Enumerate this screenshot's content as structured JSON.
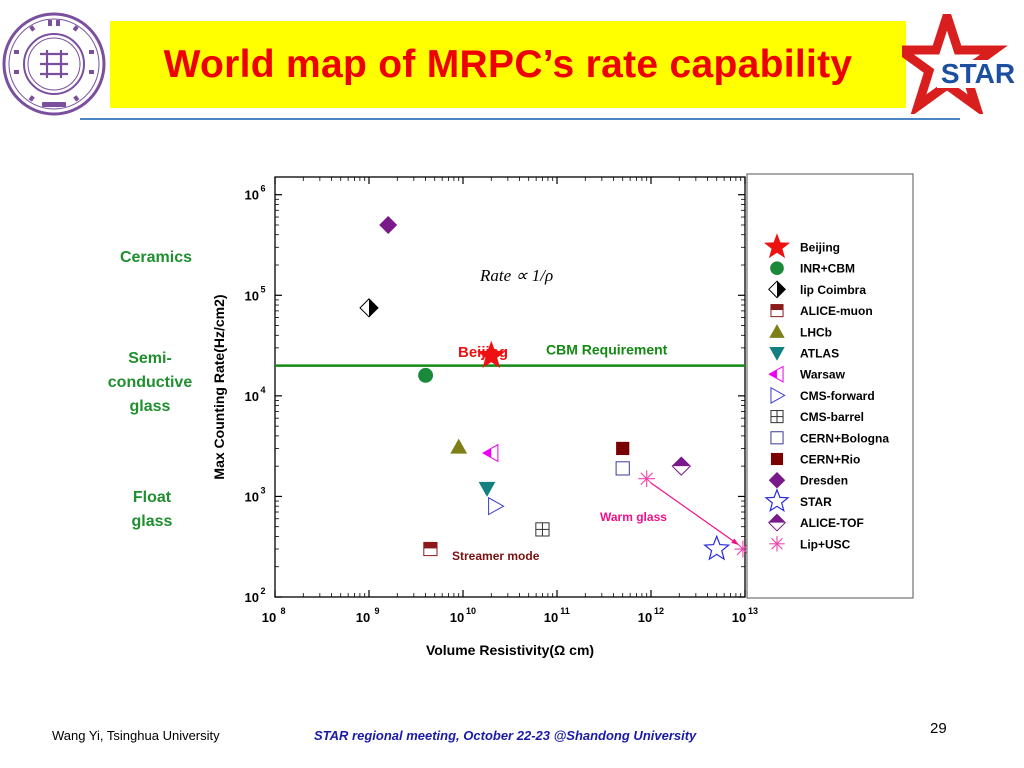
{
  "slide": {
    "title": "World map of MRPC’s rate capability",
    "footer_left": "Wang Yi, Tsinghua University",
    "footer_center": "STAR regional meeting, October 22-23 @Shandong University",
    "page_number": "29",
    "title_bg_color": "#ffff00",
    "title_color": "#ee0000",
    "logos": {
      "left": "tsinghua-university-seal",
      "right": "star-logo"
    }
  },
  "side_labels": [
    "Ceramics",
    "Semi-\nconductive\nglass",
    "Float\nglass"
  ],
  "chart_data": {
    "type": "scatter",
    "xlabel": "Volume Resistivity(Ω cm)",
    "ylabel": "Max Counting Rate(Hz/cm2)",
    "xscale": "log",
    "yscale": "log",
    "xlim": [
      100000000.0,
      10000000000000.0
    ],
    "ylim": [
      100,
      1500000
    ],
    "x_ticks": [
      "8",
      "9",
      "10",
      "11",
      "12",
      "13"
    ],
    "y_ticks": [
      "2",
      "3",
      "4",
      "5",
      "6"
    ],
    "grid": false,
    "legend_position": "right",
    "formula": "Rate ∝ 1/ρ",
    "cbm_requirement": {
      "label": "CBM Requirement",
      "y": 20000,
      "color": "#138a13"
    },
    "annotations": [
      "Beijing",
      "Warm glass",
      "Streamer mode"
    ],
    "series": [
      {
        "name": "Beijing",
        "color": "#ee1111",
        "marker": "star-filled",
        "points": [
          [
            20000000000.0,
            25000
          ]
        ]
      },
      {
        "name": "INR+CBM",
        "color": "#1a8a3a",
        "marker": "circle",
        "points": [
          [
            4000000000.0,
            16000
          ]
        ]
      },
      {
        "name": "lip Coimbra",
        "color": "#000000",
        "marker": "diamond-half",
        "points": [
          [
            1000000000.0,
            75000
          ]
        ]
      },
      {
        "name": "ALICE-muon",
        "color": "#8b1a1a",
        "marker": "square-half",
        "points": [
          [
            4500000000.0,
            300
          ]
        ]
      },
      {
        "name": "LHCb",
        "color": "#7f7f17",
        "marker": "triangle-up",
        "points": [
          [
            9000000000.0,
            3100
          ]
        ]
      },
      {
        "name": "ATLAS",
        "color": "#138080",
        "marker": "triangle-down",
        "points": [
          [
            18000000000.0,
            1200
          ]
        ]
      },
      {
        "name": "Warsaw",
        "color": "#ee00ee",
        "marker": "triangle-left",
        "points": [
          [
            20000000000.0,
            2700
          ]
        ]
      },
      {
        "name": "CMS-forward",
        "color": "#3a3ad6",
        "marker": "triangle-right",
        "points": [
          [
            22000000000.0,
            800
          ]
        ]
      },
      {
        "name": "CMS-barrel",
        "color": "#333333",
        "marker": "square-plus",
        "points": [
          [
            70000000000.0,
            470
          ]
        ]
      },
      {
        "name": "CERN+Bologna",
        "color": "#3a3a9a",
        "marker": "square-open",
        "points": [
          [
            500000000000.0,
            1900
          ]
        ]
      },
      {
        "name": "CERN+Rio",
        "color": "#7a0000",
        "marker": "square",
        "points": [
          [
            500000000000.0,
            3000
          ]
        ]
      },
      {
        "name": "Dresden",
        "color": "#7a1a8a",
        "marker": "diamond",
        "points": [
          [
            1600000000.0,
            500000
          ]
        ]
      },
      {
        "name": "STAR",
        "color": "#2a2ae0",
        "marker": "star-open",
        "points": [
          [
            5000000000000.0,
            300
          ]
        ]
      },
      {
        "name": "ALICE-TOF",
        "color": "#7a1a8a",
        "marker": "diamond-half",
        "points": [
          [
            2100000000000.0,
            2000
          ]
        ]
      },
      {
        "name": "Lip+USC",
        "color": "#ee44aa",
        "marker": "asterisk",
        "points": [
          [
            900000000000.0,
            1500
          ],
          [
            9500000000000.0,
            300
          ]
        ]
      }
    ]
  }
}
